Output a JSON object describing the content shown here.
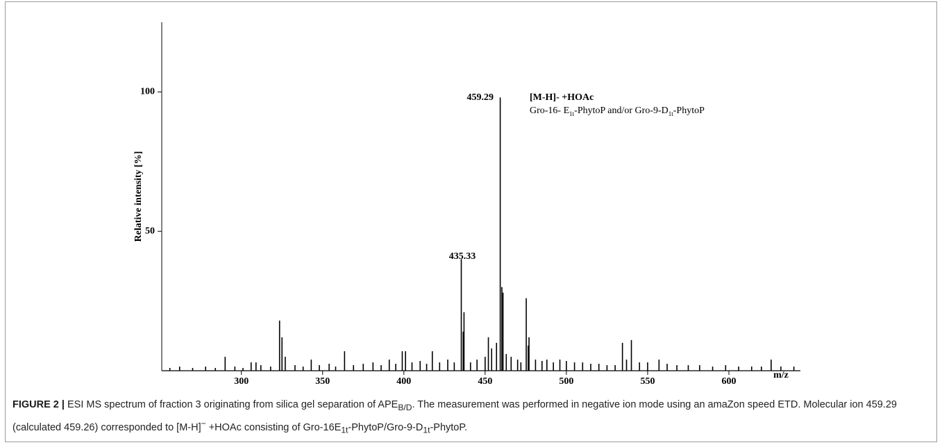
{
  "chart_data": {
    "type": "stick",
    "y_label": "Relative intensity [%]",
    "x_label": "m/z",
    "color": "#000000",
    "xlim": [
      251,
      644
    ],
    "xticks": [
      300,
      350,
      400,
      450,
      500,
      550,
      600
    ],
    "ylim": [
      0,
      125
    ],
    "yticks": [
      50,
      100
    ],
    "peak_labels": [
      "435.33",
      "459.29"
    ],
    "annotation_title": "[M-H]- +HOAc",
    "annotation_parts": [
      "Gro-16- E",
      "1t",
      "-PhytoP and/or Gro-9-D",
      "1t",
      "-PhytoP"
    ],
    "x": [
      256,
      262,
      270,
      278,
      284,
      290,
      296,
      301,
      306,
      309,
      312,
      318,
      323.5,
      325,
      327,
      333,
      338,
      343,
      348,
      354,
      358,
      363.5,
      369,
      375,
      381,
      386,
      391,
      395,
      399,
      401,
      405,
      410,
      414,
      417.5,
      422,
      427,
      431,
      435.33,
      436.5,
      437,
      441,
      445,
      450,
      452,
      454,
      457,
      459.29,
      460.3,
      461,
      463,
      466,
      470,
      472,
      475.3,
      476.5,
      477,
      481,
      485,
      488,
      492,
      496,
      500,
      505,
      510,
      515,
      520,
      525,
      530,
      534.5,
      537,
      540,
      545,
      550,
      557,
      562,
      568,
      575,
      582,
      590,
      598,
      606,
      614,
      620,
      626,
      632,
      640
    ],
    "values": [
      1,
      1.5,
      1,
      1.5,
      1,
      5,
      1.5,
      1,
      3,
      3,
      2,
      1.5,
      18,
      12,
      5,
      2,
      1.5,
      4,
      2,
      2.5,
      1.5,
      7,
      2,
      2.5,
      3,
      2,
      4,
      2.5,
      7,
      7,
      3,
      3.5,
      2.5,
      7,
      3,
      4,
      3,
      40,
      14,
      21,
      3,
      4,
      5,
      12,
      8,
      10,
      98,
      30,
      28,
      6,
      5,
      4,
      3,
      26,
      9,
      12,
      4,
      3.5,
      4,
      3,
      4,
      3.5,
      3,
      3,
      2.5,
      2.5,
      2,
      2,
      10,
      4,
      11,
      3,
      3,
      4,
      2.5,
      2,
      2,
      2,
      1.5,
      2,
      1.5,
      1.5,
      1.5,
      4,
      1.5,
      1.5
    ]
  },
  "caption": {
    "label": "FIGURE 2 |",
    "parts": [
      {
        "text": " ESI MS spectrum of fraction 3 originating from silica gel separation of APE"
      },
      {
        "sub": "B/D"
      },
      {
        "text": ". The measurement was performed in negative ion mode using an amaZon speed ETD. Molecular ion 459.29 (calculated 459.26) corresponded to [M-H]"
      },
      {
        "sup": "−"
      },
      {
        "text": " +HOAc consisting of Gro-16E"
      },
      {
        "sub": "1t"
      },
      {
        "text": "-PhytoP/Gro-9-D"
      },
      {
        "sub": "1t"
      },
      {
        "text": "-PhytoP."
      }
    ]
  }
}
